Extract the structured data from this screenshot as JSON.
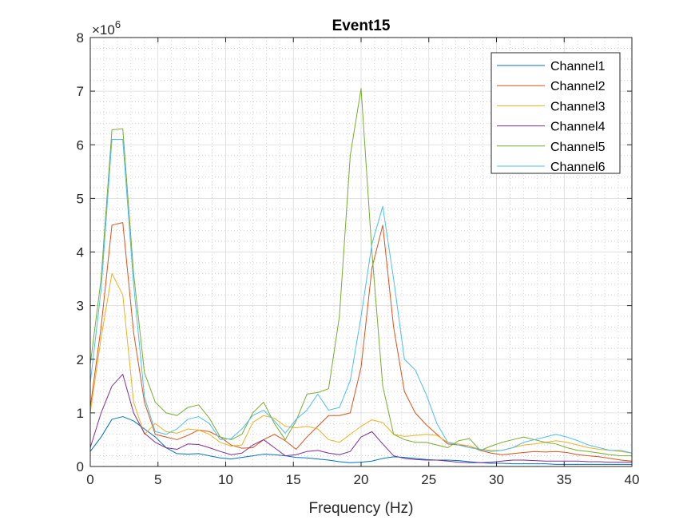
{
  "chart_data": {
    "type": "line",
    "title": "Event15",
    "xlabel": "Frequency (Hz)",
    "ylabel": "",
    "xlim": [
      0,
      40
    ],
    "ylim": [
      0,
      8
    ],
    "y_multiplier_label": "×10",
    "y_multiplier_exponent": "6",
    "xticks": [
      "0",
      "5",
      "10",
      "15",
      "20",
      "25",
      "30",
      "35",
      "40"
    ],
    "yticks": [
      "0",
      "1",
      "2",
      "3",
      "4",
      "5",
      "6",
      "7",
      "8"
    ],
    "grid": true,
    "minor_grid": true,
    "legend_position": "top-right",
    "x": [
      0,
      0.8,
      1.6,
      2.4,
      3.2,
      4.0,
      4.8,
      5.6,
      6.4,
      7.2,
      8.0,
      8.8,
      9.6,
      10.4,
      11.2,
      12.0,
      12.8,
      13.6,
      14.4,
      15.2,
      16.0,
      16.8,
      17.6,
      18.4,
      19.2,
      20.0,
      20.8,
      21.6,
      22.4,
      23.2,
      24.0,
      24.8,
      25.6,
      26.4,
      27.2,
      28.0,
      28.8,
      29.6,
      30.4,
      31.2,
      32.0,
      32.8,
      33.6,
      34.4,
      35.2,
      36.0,
      36.8,
      37.6,
      38.4,
      39.2,
      40.0
    ],
    "series": [
      {
        "name": "Channel1",
        "color": "#0072BD",
        "values": [
          0.28,
          0.55,
          0.88,
          0.93,
          0.85,
          0.7,
          0.55,
          0.35,
          0.24,
          0.23,
          0.24,
          0.2,
          0.16,
          0.14,
          0.17,
          0.2,
          0.23,
          0.22,
          0.2,
          0.17,
          0.16,
          0.14,
          0.12,
          0.09,
          0.07,
          0.08,
          0.1,
          0.15,
          0.18,
          0.17,
          0.15,
          0.13,
          0.12,
          0.12,
          0.11,
          0.09,
          0.07,
          0.06,
          0.06,
          0.05,
          0.05,
          0.05,
          0.05,
          0.04,
          0.04,
          0.04,
          0.04,
          0.04,
          0.04,
          0.04,
          0.04
        ]
      },
      {
        "name": "Channel2",
        "color": "#D95319",
        "values": [
          1.1,
          2.6,
          4.5,
          4.55,
          2.5,
          1.2,
          0.6,
          0.55,
          0.5,
          0.58,
          0.68,
          0.65,
          0.55,
          0.4,
          0.34,
          0.35,
          0.5,
          0.6,
          0.48,
          0.32,
          0.55,
          0.75,
          0.95,
          0.95,
          1.0,
          1.85,
          3.7,
          4.5,
          2.6,
          1.4,
          1.0,
          0.78,
          0.6,
          0.42,
          0.4,
          0.38,
          0.3,
          0.25,
          0.22,
          0.24,
          0.26,
          0.28,
          0.27,
          0.28,
          0.26,
          0.22,
          0.2,
          0.18,
          0.15,
          0.12,
          0.1
        ]
      },
      {
        "name": "Channel3",
        "color": "#EDB120",
        "values": [
          1.0,
          2.4,
          3.6,
          3.2,
          1.2,
          0.6,
          0.8,
          0.65,
          0.62,
          0.7,
          0.68,
          0.6,
          0.45,
          0.38,
          0.4,
          0.82,
          0.95,
          0.9,
          0.75,
          0.72,
          0.75,
          0.7,
          0.5,
          0.45,
          0.6,
          0.75,
          0.87,
          0.82,
          0.6,
          0.56,
          0.58,
          0.6,
          0.58,
          0.45,
          0.42,
          0.38,
          0.32,
          0.3,
          0.3,
          0.35,
          0.4,
          0.42,
          0.45,
          0.48,
          0.45,
          0.4,
          0.35,
          0.32,
          0.3,
          0.28,
          0.25
        ]
      },
      {
        "name": "Channel4",
        "color": "#7E2F8E",
        "values": [
          0.35,
          1.0,
          1.5,
          1.72,
          1.0,
          0.62,
          0.45,
          0.35,
          0.32,
          0.42,
          0.41,
          0.35,
          0.28,
          0.22,
          0.25,
          0.4,
          0.5,
          0.35,
          0.2,
          0.22,
          0.28,
          0.3,
          0.25,
          0.22,
          0.28,
          0.55,
          0.65,
          0.42,
          0.2,
          0.15,
          0.13,
          0.12,
          0.12,
          0.1,
          0.08,
          0.07,
          0.07,
          0.08,
          0.1,
          0.12,
          0.12,
          0.11,
          0.1,
          0.1,
          0.1,
          0.1,
          0.09,
          0.09,
          0.08,
          0.08,
          0.08
        ]
      },
      {
        "name": "Channel5",
        "color": "#77AC30",
        "values": [
          1.9,
          3.5,
          6.28,
          6.3,
          3.6,
          1.75,
          1.2,
          1.0,
          0.95,
          1.1,
          1.15,
          0.9,
          0.55,
          0.5,
          0.6,
          1.0,
          1.2,
          0.8,
          0.5,
          0.85,
          1.35,
          1.38,
          1.45,
          2.8,
          5.8,
          7.05,
          4.0,
          1.5,
          0.6,
          0.5,
          0.45,
          0.45,
          0.4,
          0.35,
          0.48,
          0.52,
          0.3,
          0.38,
          0.45,
          0.5,
          0.55,
          0.5,
          0.45,
          0.42,
          0.35,
          0.3,
          0.28,
          0.25,
          0.22,
          0.2,
          0.2
        ]
      },
      {
        "name": "Channel6",
        "color": "#4DBEEE",
        "values": [
          1.55,
          3.3,
          6.1,
          6.1,
          3.4,
          1.3,
          0.65,
          0.6,
          0.7,
          0.88,
          0.93,
          0.8,
          0.5,
          0.52,
          0.7,
          0.95,
          1.05,
          0.85,
          0.62,
          0.88,
          1.05,
          1.35,
          1.05,
          1.1,
          1.6,
          2.8,
          4.15,
          4.85,
          3.5,
          2.0,
          1.8,
          1.35,
          0.8,
          0.45,
          0.4,
          0.35,
          0.32,
          0.28,
          0.3,
          0.35,
          0.45,
          0.5,
          0.55,
          0.6,
          0.55,
          0.48,
          0.4,
          0.35,
          0.3,
          0.3,
          0.25
        ]
      }
    ]
  }
}
